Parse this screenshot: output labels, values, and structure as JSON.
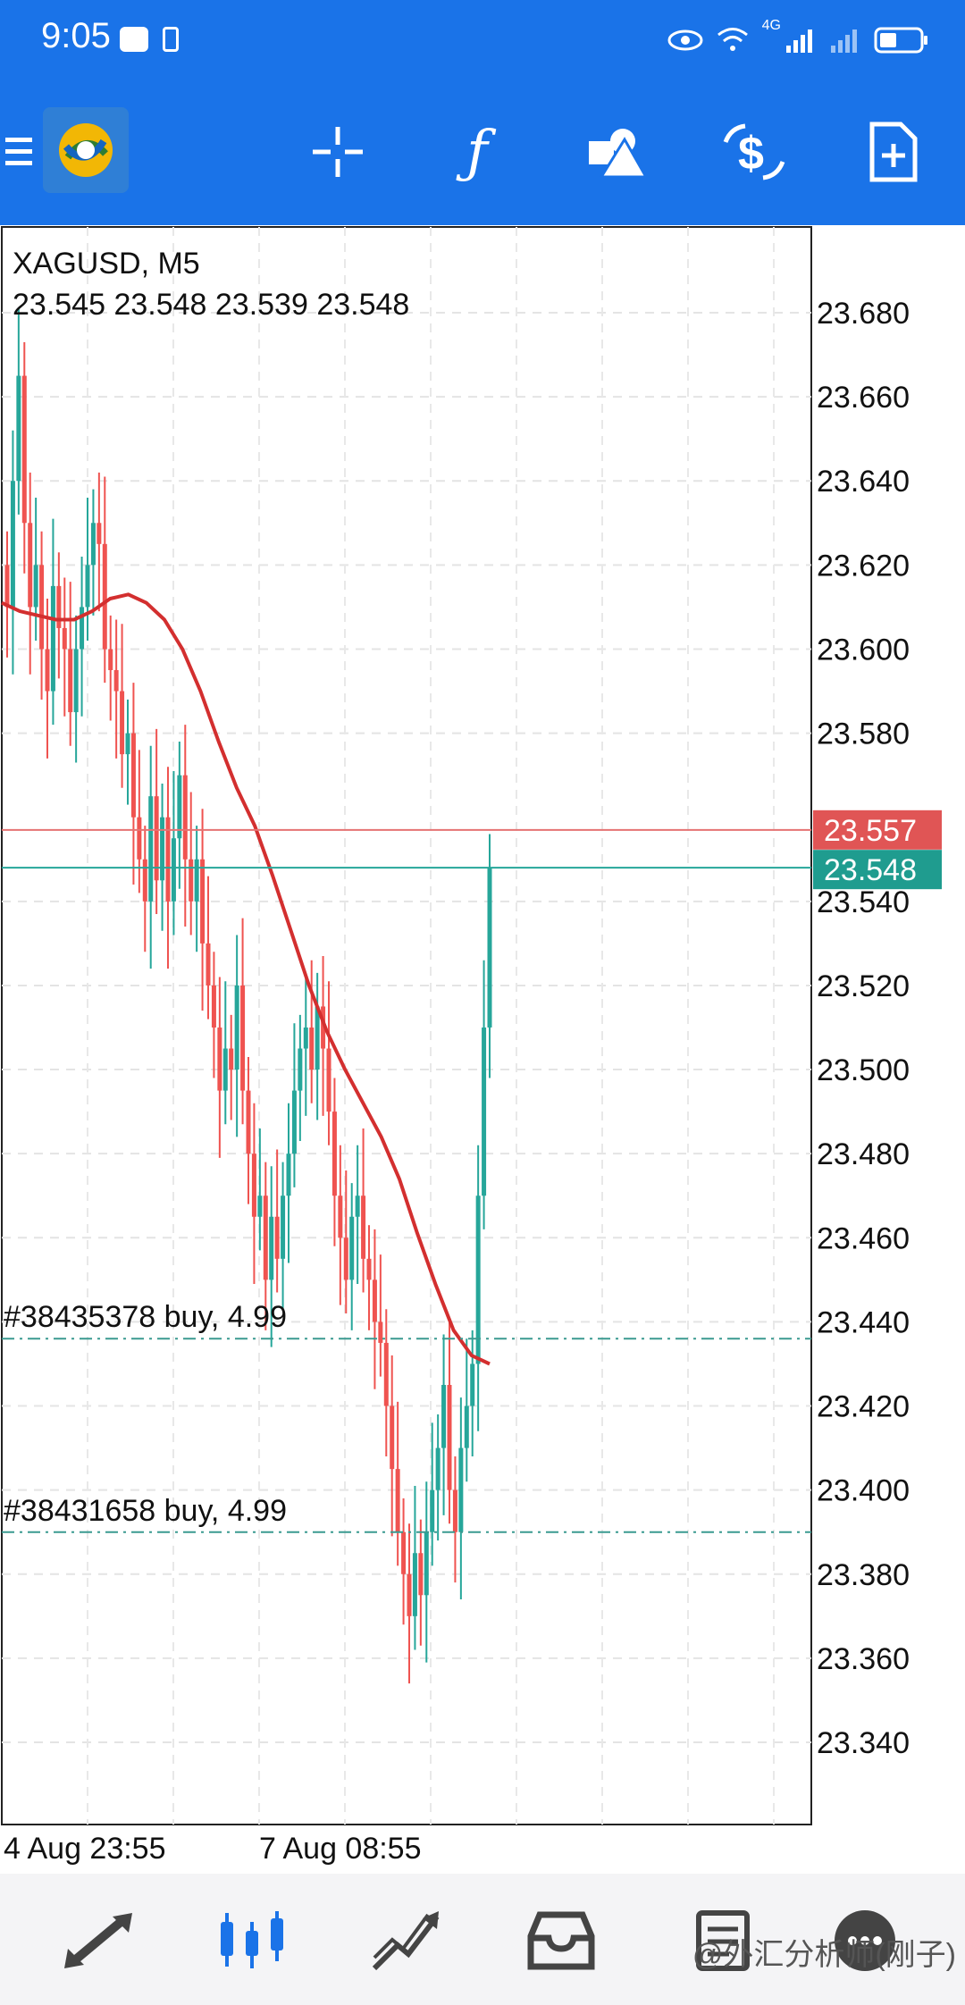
{
  "status_bar": {
    "time": "9:05",
    "network": "4G",
    "icons": [
      "huawei-store-icon",
      "alert-icon",
      "eye-icon",
      "wifi-icon",
      "signal-icon",
      "battery-icon"
    ]
  },
  "toolbar": {
    "buttons": [
      "menu-icon",
      "metatrader-logo",
      "crosshair-icon",
      "indicators-icon",
      "objects-icon",
      "trade-icon",
      "new-order-icon"
    ]
  },
  "chart": {
    "symbol": "XAGUSD, M5",
    "ohlc": "23.545 23.548 23.539 23.548",
    "bid_price": "23.548",
    "ask_price": "23.557",
    "orders": [
      {
        "label": "#38435378 buy, 4.99",
        "price": 23.436
      },
      {
        "label": "#38431658 buy, 4.99",
        "price": 23.39
      }
    ],
    "x_labels": [
      "4 Aug 23:55",
      "7 Aug 08:55"
    ],
    "colors": {
      "bull": "#26a69a",
      "bear": "#ef5350",
      "ma": "#d32f2f",
      "ask_line": "#e57373",
      "bid_line": "#26a69a"
    }
  },
  "chart_data": {
    "type": "candlestick",
    "title": "XAGUSD, M5",
    "y_ticks": [
      "23.680",
      "23.660",
      "23.640",
      "23.620",
      "23.600",
      "23.580",
      "23.540",
      "23.520",
      "23.500",
      "23.480",
      "23.460",
      "23.440",
      "23.420",
      "23.400",
      "23.380",
      "23.360",
      "23.340"
    ],
    "ylim": [
      23.325,
      23.695
    ],
    "x_tick_labels": [
      "4 Aug 23:55",
      "7 Aug 08:55"
    ],
    "series": [
      {
        "name": "close",
        "values": [
          23.61,
          23.64,
          23.665,
          23.63,
          23.61,
          23.62,
          23.6,
          23.59,
          23.615,
          23.605,
          23.6,
          23.585,
          23.6,
          23.61,
          23.62,
          23.63,
          23.625,
          23.6,
          23.595,
          23.59,
          23.575,
          23.58,
          23.56,
          23.55,
          23.54,
          23.565,
          23.545,
          23.56,
          23.54,
          23.555,
          23.57,
          23.55,
          23.54,
          23.55,
          23.53,
          23.52,
          23.51,
          23.495,
          23.505,
          23.5,
          23.52,
          23.495,
          23.48,
          23.465,
          23.47,
          23.45,
          23.465,
          23.455,
          23.47,
          23.48,
          23.495,
          23.505,
          23.51,
          23.5,
          23.515,
          23.505,
          23.49,
          23.47,
          23.46,
          23.45,
          23.465,
          23.47,
          23.455,
          23.45,
          23.44,
          23.435,
          23.42,
          23.405,
          23.39,
          23.38,
          23.37,
          23.385,
          23.375,
          23.39,
          23.4,
          23.41,
          23.425,
          23.4,
          23.39,
          23.41,
          23.42,
          23.43,
          23.47,
          23.51,
          23.548
        ]
      },
      {
        "name": "MA",
        "values": [
          23.611,
          23.609,
          23.608,
          23.607,
          23.607,
          23.609,
          23.612,
          23.613,
          23.611,
          23.607,
          23.6,
          23.59,
          23.578,
          23.567,
          23.558,
          23.546,
          23.533,
          23.52,
          23.509,
          23.5,
          23.492,
          23.484,
          23.474,
          23.461,
          23.449,
          23.438,
          23.432,
          23.43
        ]
      }
    ]
  },
  "bottom_nav": {
    "items": [
      "quotes-icon",
      "chart-icon",
      "trade-icon",
      "history-icon",
      "messages-icon",
      "settings-icon"
    ],
    "active": "chart-icon",
    "watermark": "@外汇分析师(刚子)"
  }
}
